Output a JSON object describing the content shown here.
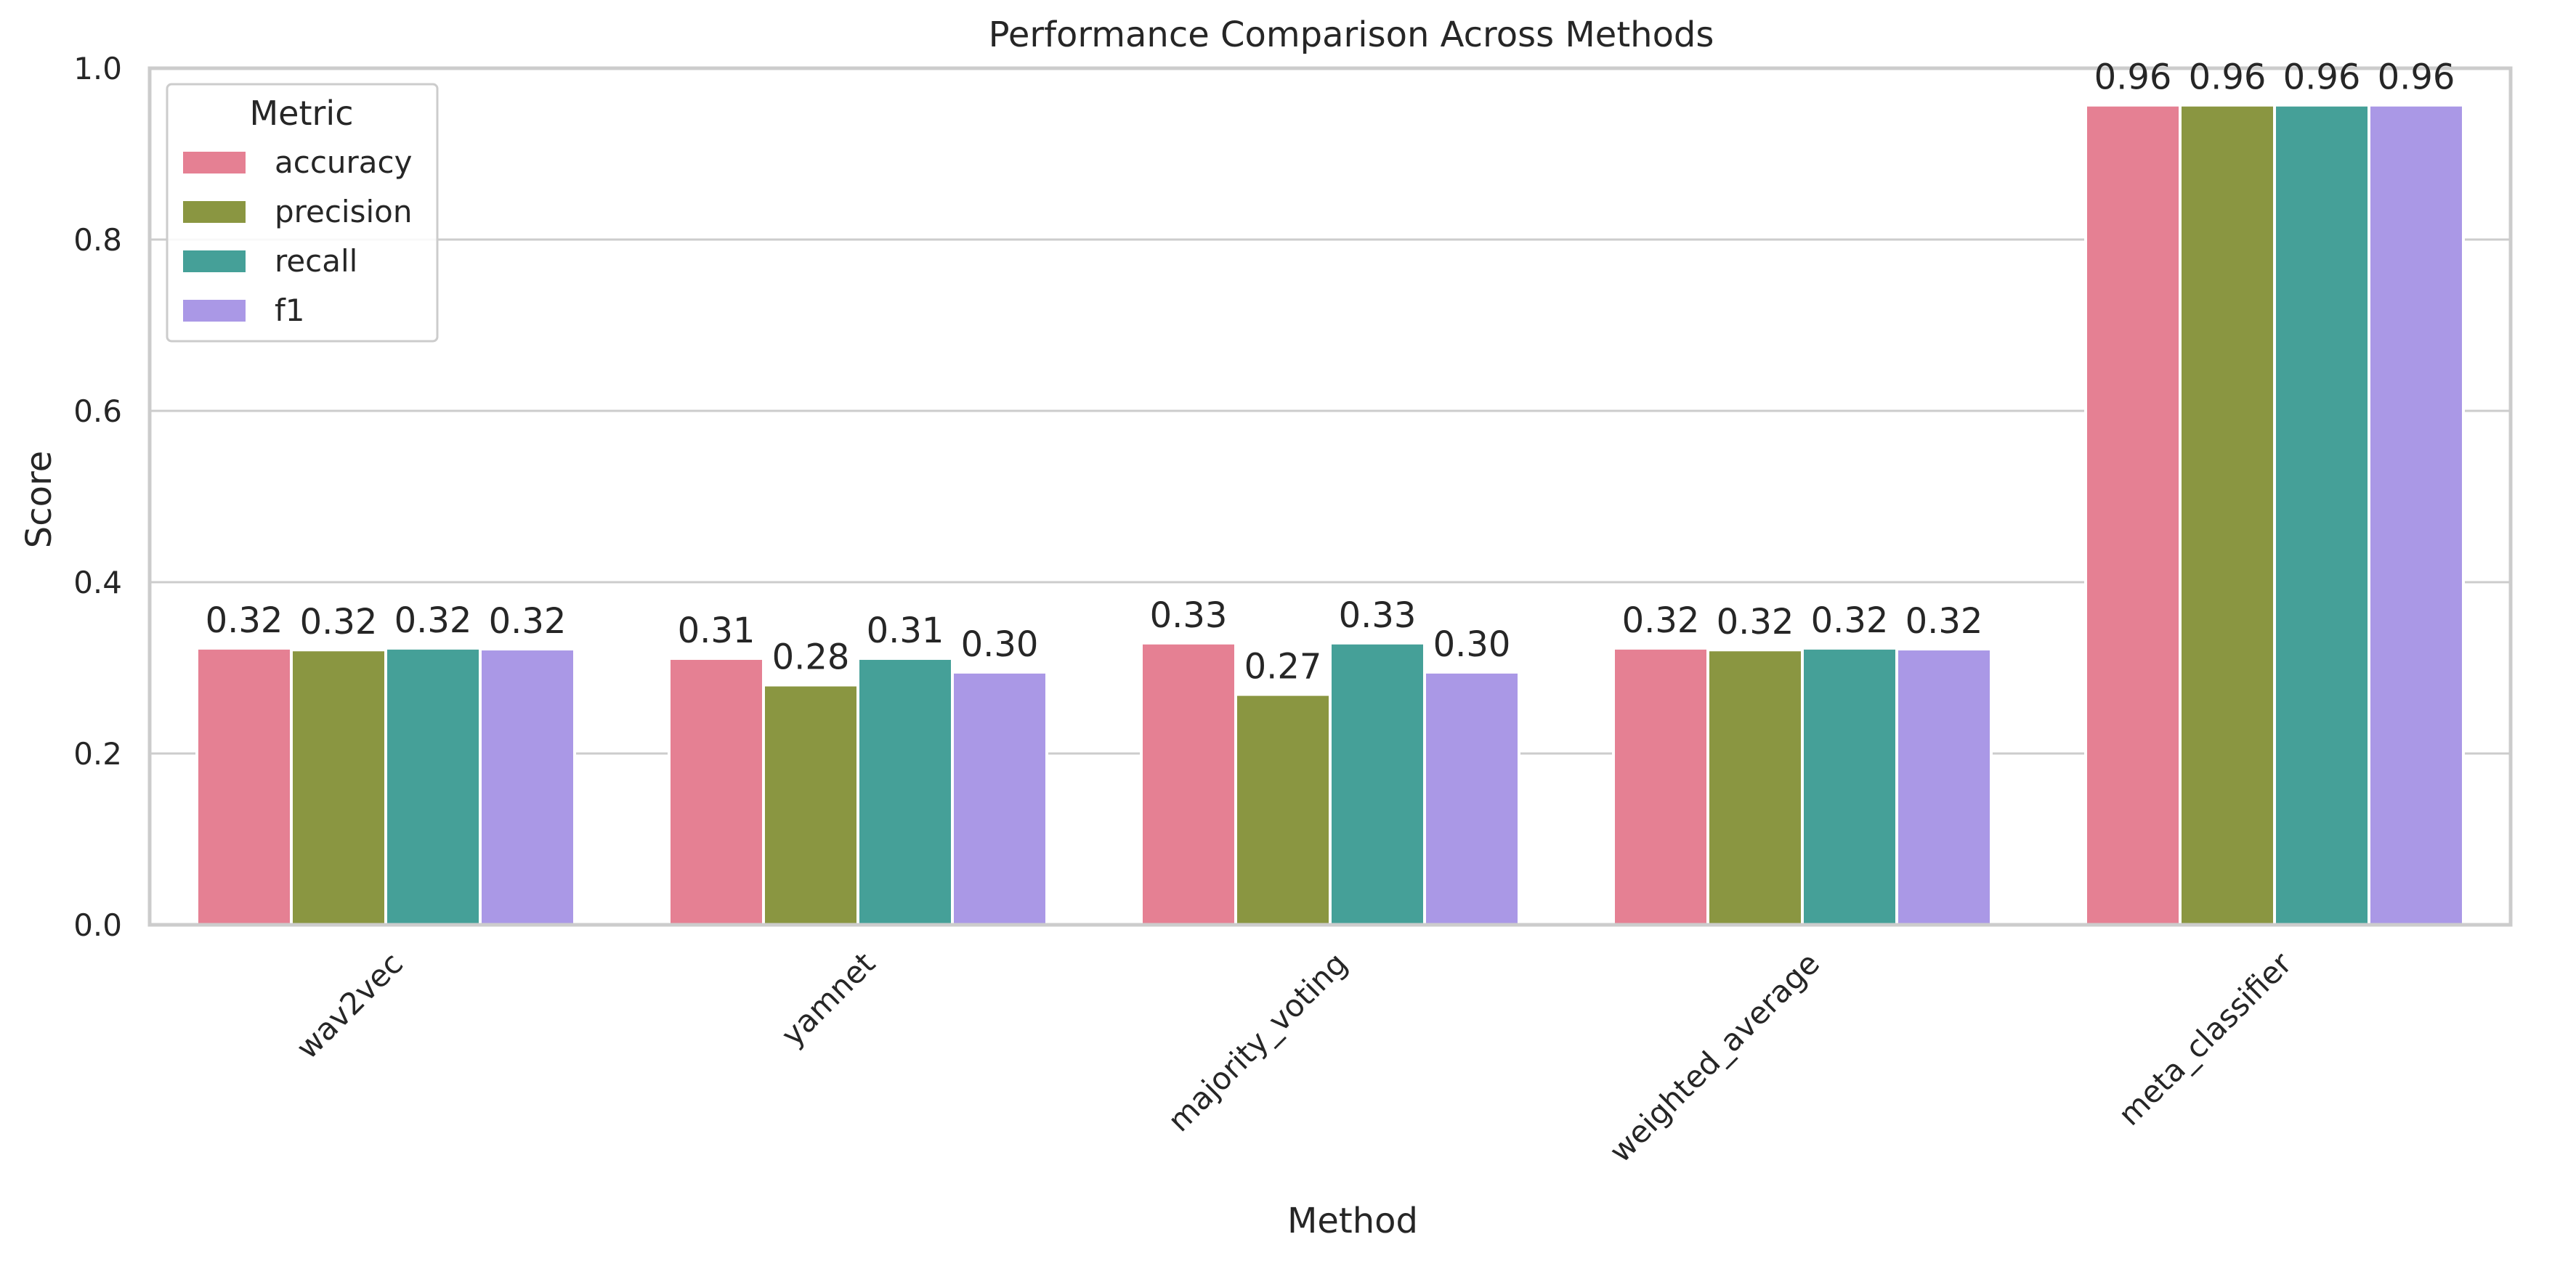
{
  "chart_data": {
    "type": "bar",
    "title": "Performance Comparison Across Methods",
    "xlabel": "Method",
    "ylabel": "Score",
    "ylim": [
      0,
      1.0
    ],
    "yticks": [
      "0.0",
      "0.2",
      "0.4",
      "0.6",
      "0.8",
      "1.0"
    ],
    "grid": true,
    "categories": [
      "wav2vec",
      "yamnet",
      "majority_voting",
      "weighted_average",
      "meta_classifier"
    ],
    "series": [
      {
        "name": "accuracy",
        "color": "#e58093",
        "values": [
          0.323,
          0.311,
          0.329,
          0.323,
          0.957
        ],
        "labels": [
          "0.32",
          "0.31",
          "0.33",
          "0.32",
          "0.96"
        ]
      },
      {
        "name": "precision",
        "color": "#8a9641",
        "values": [
          0.321,
          0.28,
          0.269,
          0.321,
          0.957
        ],
        "labels": [
          "0.32",
          "0.28",
          "0.27",
          "0.32",
          "0.96"
        ]
      },
      {
        "name": "recall",
        "color": "#45a098",
        "values": [
          0.323,
          0.311,
          0.329,
          0.323,
          0.957
        ],
        "labels": [
          "0.32",
          "0.31",
          "0.33",
          "0.32",
          "0.96"
        ]
      },
      {
        "name": "f1",
        "color": "#aa98e6",
        "values": [
          0.322,
          0.295,
          0.295,
          0.322,
          0.957
        ],
        "labels": [
          "0.32",
          "0.30",
          "0.30",
          "0.32",
          "0.96"
        ]
      }
    ],
    "legend": {
      "title": "Metric",
      "placement": "top-left"
    }
  }
}
